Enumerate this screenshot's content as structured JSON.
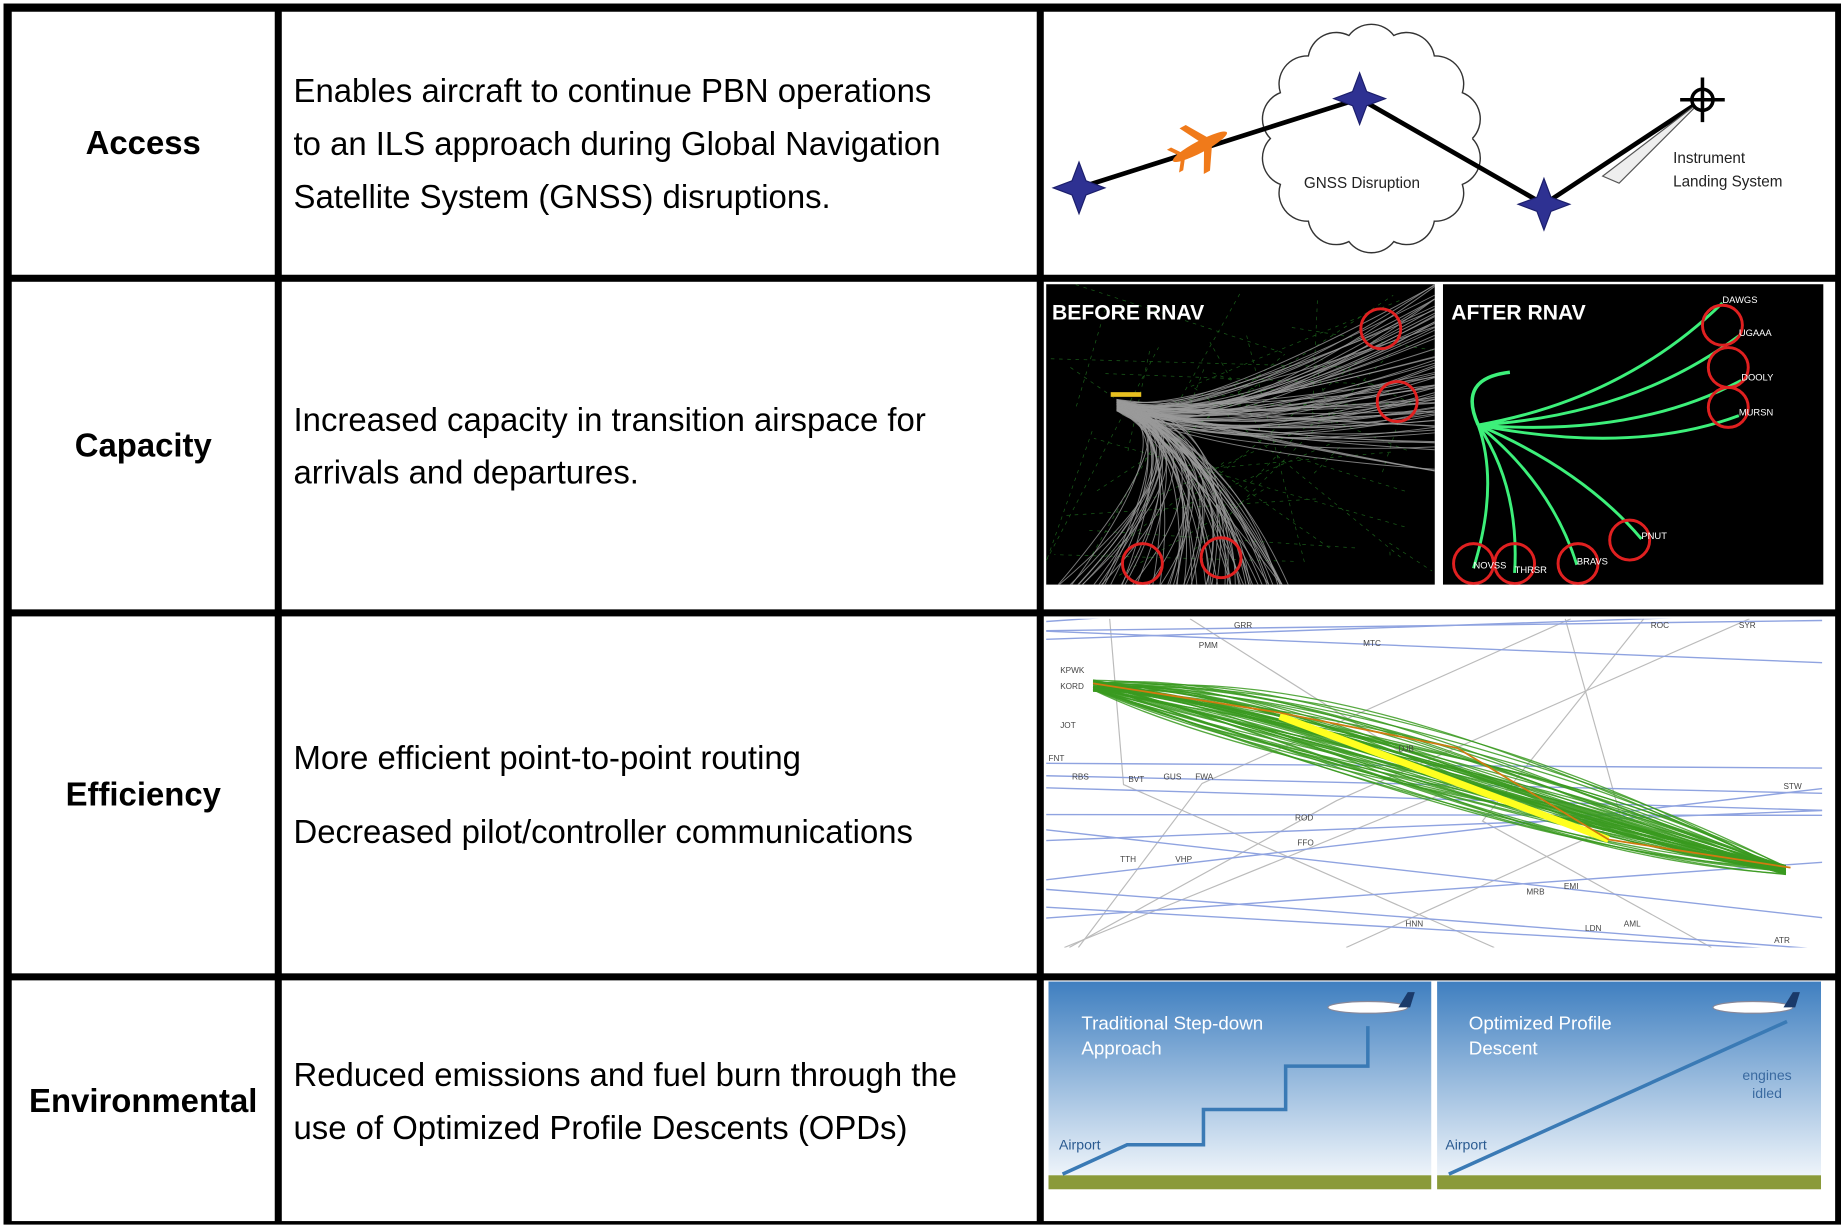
{
  "rows": [
    {
      "label": "Access",
      "description": [
        "Enables aircraft to continue PBN operations",
        "to an ILS approach during Global Navigation",
        "Satellite System (GNSS) disruptions."
      ],
      "figure": {
        "cloud_label": "GNSS Disruption",
        "ils_label": [
          "Instrument",
          "Landing System"
        ]
      }
    },
    {
      "label": "Capacity",
      "description": [
        "Increased capacity in transition airspace for",
        "arrivals and departures."
      ],
      "figure": {
        "before_title": "BEFORE RNAV",
        "after_title": "AFTER RNAV",
        "waypoints": [
          "DAWGS",
          "UGAAA",
          "DOOLY",
          "MURSN",
          "PNUT",
          "NOVSS",
          "THRSR",
          "BRAVS"
        ]
      }
    },
    {
      "label": "Efficiency",
      "paragraphs": [
        "More efficient point-to-point routing",
        "Decreased pilot/controller communications"
      ],
      "figure": {
        "map_labels": [
          "GRR",
          "PMM",
          "MTC",
          "KPWK",
          "KORD",
          "JOT",
          "FNT",
          "RBS",
          "BVT",
          "GUS",
          "FWA",
          "DJB",
          "ROD",
          "FFO",
          "TTH",
          "VHP",
          "HNN",
          "EMI",
          "MRB",
          "LDN",
          "AML",
          "ATR",
          "ROC",
          "SYR",
          "STW"
        ]
      }
    },
    {
      "label": "Environmental",
      "description": [
        "Reduced emissions and fuel burn through the",
        "use of Optimized Profile Descents (OPDs)"
      ],
      "figure": {
        "left_title": [
          "Traditional Step-down",
          "Approach"
        ],
        "right_title": [
          "Optimized Profile",
          "Descent"
        ],
        "airport_label": "Airport",
        "idle_label": [
          "engines",
          "idled"
        ]
      }
    }
  ]
}
